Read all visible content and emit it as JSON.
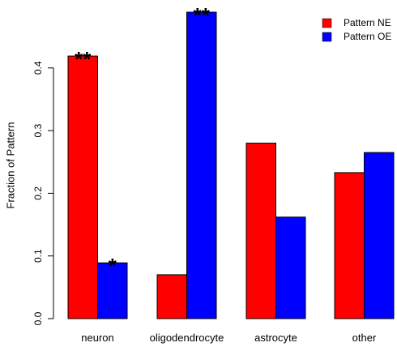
{
  "chart_data": {
    "type": "bar",
    "categories": [
      "neuron",
      "oligodendrocyte",
      "astrocyte",
      "other"
    ],
    "series": [
      {
        "name": "Pattern NE",
        "color": "#ff0000",
        "values": [
          0.419,
          0.07,
          0.28,
          0.233
        ]
      },
      {
        "name": "Pattern OE",
        "color": "#0000ff",
        "values": [
          0.089,
          0.489,
          0.162,
          0.265
        ]
      }
    ],
    "annotations": [
      {
        "text": "**",
        "category": 0,
        "series": 0
      },
      {
        "text": "*",
        "category": 0,
        "series": 1
      },
      {
        "text": "**",
        "category": 1,
        "series": 1
      }
    ],
    "ylabel": "Fraction of Pattern",
    "xlabel": "",
    "ylim": [
      0,
      0.489
    ],
    "yticks": [
      "0.0",
      "0.1",
      "0.2",
      "0.3",
      "0.4"
    ],
    "grid": false,
    "legend_position": "top-right"
  }
}
